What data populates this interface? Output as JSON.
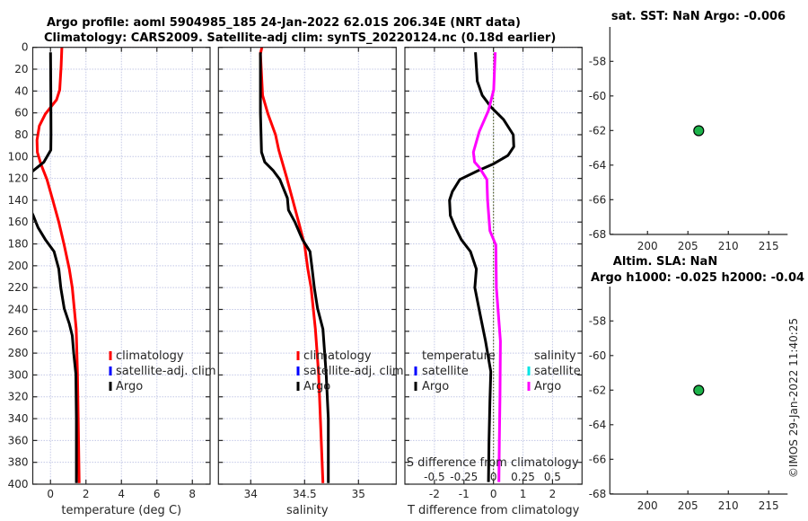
{
  "titles": {
    "line1": "Argo profile: aoml 5904985_185 24-Jan-2022 62.01S 206.34E (NRT data)",
    "line2": "Climatology: CARS2009. Satellite-adj clim: synTS_20220124.nc (0.18d earlier)"
  },
  "copyright": "©IMOS 29-Jan-2022 11:40:25",
  "chart_data": [
    {
      "type": "line",
      "xlabel": "temperature (deg C)",
      "ylabel": "",
      "xlim": [
        -1,
        9
      ],
      "ylim": [
        0,
        400
      ],
      "y_reversed": true,
      "grid": true,
      "xticks": [
        0,
        2,
        4,
        6,
        8
      ],
      "yticks": [
        0,
        20,
        40,
        60,
        80,
        100,
        120,
        140,
        160,
        180,
        200,
        220,
        240,
        260,
        280,
        300,
        320,
        340,
        360,
        380,
        400
      ],
      "legend": {
        "placement": "center-right",
        "entries": [
          "climatology",
          "satellite-adj. clim",
          "Argo"
        ]
      },
      "series": [
        {
          "name": "climatology",
          "color": "#ff0000",
          "points": [
            [
              0.64,
              0
            ],
            [
              0.6,
              17
            ],
            [
              0.52,
              39
            ],
            [
              0.34,
              48
            ],
            [
              -0.29,
              61
            ],
            [
              -0.63,
              72
            ],
            [
              -0.76,
              85
            ],
            [
              -0.74,
              96
            ],
            [
              -0.54,
              107
            ],
            [
              -0.2,
              121
            ],
            [
              0.13,
              140
            ],
            [
              0.47,
              160
            ],
            [
              0.77,
              181
            ],
            [
              1.06,
              203
            ],
            [
              1.23,
              220
            ],
            [
              1.45,
              258
            ],
            [
              1.52,
              299
            ],
            [
              1.57,
              350
            ],
            [
              1.62,
              399
            ]
          ]
        },
        {
          "name": "satellite-adj. clim",
          "color": "#0000ff",
          "points": []
        },
        {
          "name": "Argo",
          "color": "#000000",
          "points": [
            [
              0.0,
              4.5
            ],
            [
              0.02,
              40
            ],
            [
              0.03,
              80
            ],
            [
              0.02,
              94
            ],
            [
              -0.37,
              105
            ],
            [
              -1.05,
              114
            ],
            [
              -1.4,
              130
            ],
            [
              -1.1,
              150
            ],
            [
              -1.0,
              153
            ],
            [
              -0.7,
              165
            ],
            [
              -0.29,
              176
            ],
            [
              0.2,
              187
            ],
            [
              0.47,
              203
            ],
            [
              0.58,
              220
            ],
            [
              0.77,
              239
            ],
            [
              1.06,
              253
            ],
            [
              1.23,
              264
            ],
            [
              1.31,
              280
            ],
            [
              1.43,
              299
            ],
            [
              1.46,
              340
            ],
            [
              1.46,
              399
            ]
          ]
        }
      ]
    },
    {
      "type": "line",
      "xlabel": "salinity",
      "xlim": [
        33.7,
        35.35
      ],
      "ylim": [
        0,
        400
      ],
      "y_reversed": true,
      "grid": true,
      "xticks": [
        34,
        34.5,
        35
      ],
      "yticks": [
        0,
        20,
        40,
        60,
        80,
        100,
        120,
        140,
        160,
        180,
        200,
        220,
        240,
        260,
        280,
        300,
        320,
        340,
        360,
        380,
        400
      ],
      "legend": {
        "placement": "center-right",
        "entries": [
          "climatology",
          "satellite-adj. clim",
          "Argo"
        ]
      },
      "series": [
        {
          "name": "climatology",
          "color": "#ff0000",
          "points": [
            [
              34.103,
              0
            ],
            [
              34.09,
              6
            ],
            [
              34.11,
              44
            ],
            [
              34.16,
              61
            ],
            [
              34.23,
              80
            ],
            [
              34.26,
              94
            ],
            [
              34.33,
              118
            ],
            [
              34.39,
              140
            ],
            [
              34.45,
              162
            ],
            [
              34.5,
              181
            ],
            [
              34.53,
              203
            ],
            [
              34.56,
              220
            ],
            [
              34.6,
              258
            ],
            [
              34.63,
              299
            ],
            [
              34.67,
              399
            ]
          ]
        },
        {
          "name": "satellite-adj. clim",
          "color": "#0000ff",
          "points": []
        },
        {
          "name": "Argo",
          "color": "#000000",
          "points": [
            [
              34.09,
              4.5
            ],
            [
              34.09,
              60
            ],
            [
              34.1,
              96
            ],
            [
              34.13,
              105
            ],
            [
              34.21,
              113
            ],
            [
              34.27,
              121
            ],
            [
              34.34,
              138
            ],
            [
              34.35,
              149
            ],
            [
              34.41,
              160
            ],
            [
              34.48,
              176
            ],
            [
              34.55,
              187
            ],
            [
              34.57,
              203
            ],
            [
              34.59,
              220
            ],
            [
              34.62,
              239
            ],
            [
              34.67,
              258
            ],
            [
              34.7,
              299
            ],
            [
              34.72,
              340
            ],
            [
              34.72,
              399
            ]
          ]
        }
      ]
    },
    {
      "type": "line",
      "xlabel": "T difference from climatology",
      "xlim": [
        -3,
        3
      ],
      "ylim": [
        0,
        400
      ],
      "y_reversed": true,
      "grid": true,
      "xticks": [
        -2,
        -1,
        0,
        1,
        2
      ],
      "yticks": [
        0,
        20,
        40,
        60,
        80,
        100,
        120,
        140,
        160,
        180,
        200,
        220,
        240,
        260,
        280,
        300,
        320,
        340,
        360,
        380,
        400
      ],
      "s_axis": {
        "label": "S difference from climatology",
        "xlim": [
          -0.75,
          0.75
        ],
        "xticks": [
          -0.5,
          -0.25,
          0,
          0.25,
          0.5
        ]
      },
      "zero_line_color": "#4d5a1e",
      "legend": {
        "temperature": {
          "header": "temperature",
          "entries": [
            "satellite",
            "Argo"
          ]
        },
        "salinity": {
          "header": "salinity",
          "entries": [
            "satellite",
            "Argo"
          ]
        }
      },
      "series": [
        {
          "name": "temperature satellite",
          "axis": "T",
          "color": "#0000ff",
          "points": []
        },
        {
          "name": "temperature Argo",
          "axis": "T",
          "color": "#000000",
          "points": [
            [
              -0.61,
              4.5
            ],
            [
              -0.55,
              31
            ],
            [
              -0.38,
              44
            ],
            [
              -0.07,
              55
            ],
            [
              0.34,
              66
            ],
            [
              0.67,
              80
            ],
            [
              0.69,
              91
            ],
            [
              0.49,
              99
            ],
            [
              -0.02,
              107
            ],
            [
              -0.53,
              113
            ],
            [
              -1.14,
              121
            ],
            [
              -1.39,
              132
            ],
            [
              -1.49,
              140
            ],
            [
              -1.46,
              154
            ],
            [
              -1.29,
              165
            ],
            [
              -1.09,
              176
            ],
            [
              -0.78,
              187
            ],
            [
              -0.58,
              203
            ],
            [
              -0.63,
              220
            ],
            [
              -0.45,
              245
            ],
            [
              -0.27,
              269
            ],
            [
              -0.09,
              297
            ],
            [
              -0.12,
              324
            ],
            [
              -0.15,
              360
            ],
            [
              -0.17,
              398
            ]
          ]
        },
        {
          "name": "salinity satellite",
          "axis": "S",
          "color": "#00e5e5",
          "points": []
        },
        {
          "name": "salinity Argo",
          "axis": "S",
          "color": "#ff00ff",
          "points": [
            [
              0.015,
              4.5
            ],
            [
              0.002,
              39
            ],
            [
              -0.043,
              58
            ],
            [
              -0.12,
              77
            ],
            [
              -0.17,
              96
            ],
            [
              -0.16,
              105
            ],
            [
              -0.12,
              110
            ],
            [
              -0.056,
              121
            ],
            [
              -0.05,
              140
            ],
            [
              -0.03,
              168
            ],
            [
              0.02,
              181
            ],
            [
              0.025,
              220
            ],
            [
              0.059,
              269
            ],
            [
              0.055,
              320
            ],
            [
              0.05,
              360
            ],
            [
              0.046,
              398
            ]
          ]
        }
      ]
    },
    {
      "type": "scatter",
      "title": [
        "sat. SST: NaN Argo: -0.006"
      ],
      "xlim": [
        195.34,
        217.34
      ],
      "ylim": [
        -68.01,
        -56.01
      ],
      "xticks": [
        200,
        205,
        210,
        215
      ],
      "yticks": [
        -68,
        -66,
        -64,
        -62,
        -60,
        -58
      ],
      "points": [
        [
          206.34,
          -62.01
        ]
      ],
      "marker_color": "#1db34a"
    },
    {
      "type": "scatter",
      "title": [
        "Altim. SLA: NaN",
        "Argo h1000: -0.025 h2000: -0.04"
      ],
      "xlim": [
        195.34,
        217.34
      ],
      "ylim": [
        -68.01,
        -56.01
      ],
      "xticks": [
        200,
        205,
        210,
        215
      ],
      "yticks": [
        -68,
        -66,
        -64,
        -62,
        -60,
        -58
      ],
      "points": [
        [
          206.34,
          -62.01
        ]
      ],
      "marker_color": "#1db34a"
    }
  ]
}
